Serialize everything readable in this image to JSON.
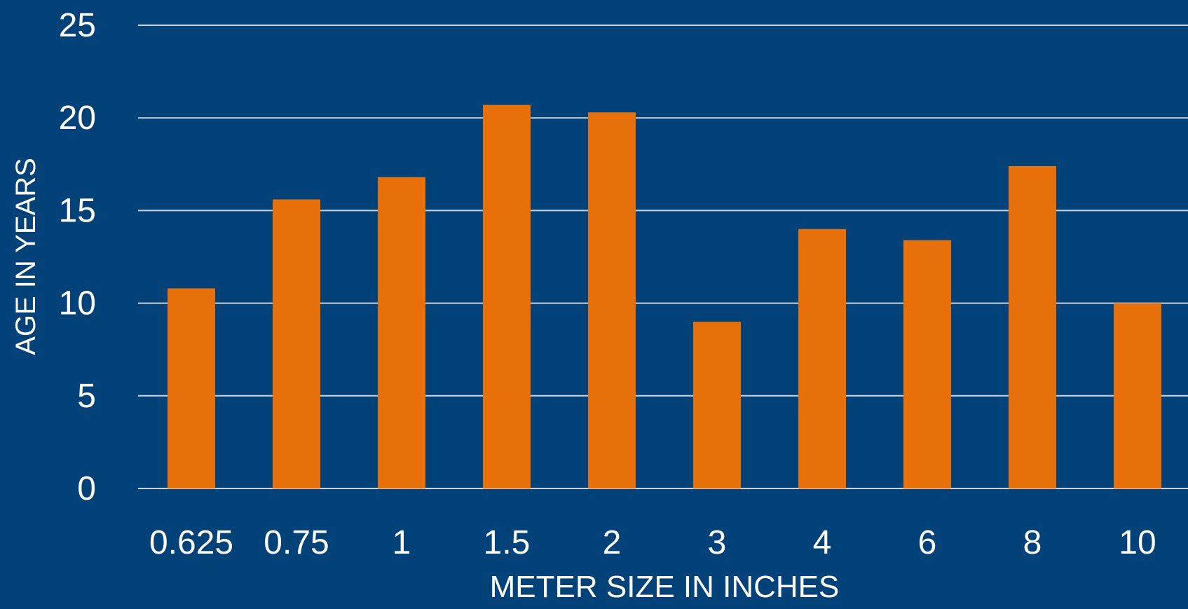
{
  "chart_data": {
    "type": "bar",
    "categories": [
      "0.625",
      "0.75",
      "1",
      "1.5",
      "2",
      "3",
      "4",
      "6",
      "8",
      "10"
    ],
    "values": [
      10.8,
      15.6,
      16.8,
      20.7,
      20.3,
      9.0,
      14.0,
      13.4,
      17.4,
      10.0
    ],
    "xlabel": "METER SIZE IN INCHES",
    "ylabel": "AGE IN YEARS",
    "ylim": [
      0,
      25
    ],
    "yticks": [
      0,
      5,
      10,
      15,
      20,
      25
    ],
    "grid": true,
    "legend": "none",
    "colors": {
      "background": "#024279",
      "bar": "#E8700A",
      "grid": "#C9D3DE",
      "text": "#FFFFFF"
    }
  }
}
